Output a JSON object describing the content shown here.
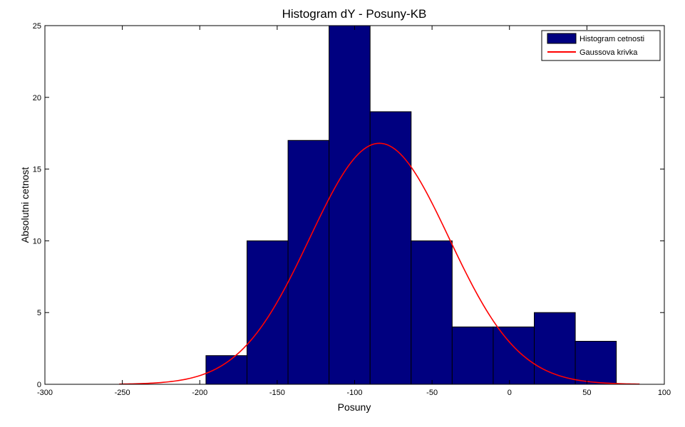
{
  "chart_data": {
    "type": "bar",
    "title": "Histogram dY - Posuny-KB",
    "xlabel": "Posuny",
    "ylabel": "Absolutni cetnost",
    "xlim": [
      -300,
      100
    ],
    "ylim": [
      0,
      25
    ],
    "xticks": [
      -300,
      -250,
      -200,
      -150,
      -100,
      -50,
      0,
      50,
      100
    ],
    "yticks": [
      0,
      5,
      10,
      15,
      20,
      25
    ],
    "grid": false,
    "legend_position": "top-right",
    "colors": {
      "bars": "#000080",
      "curve": "#ff0000",
      "edge": "#000000"
    },
    "series": [
      {
        "name": "Histogram cetnosti",
        "type": "bar",
        "bin_edges": [
          -196,
          -169.5,
          -143,
          -116.5,
          -90,
          -63.5,
          -37,
          -10.5,
          16,
          42.5,
          69
        ],
        "values": [
          2,
          10,
          17,
          25,
          19,
          10,
          4,
          4,
          5,
          3
        ]
      },
      {
        "name": "Gaussova krivka",
        "type": "line",
        "distribution": {
          "mean": -84,
          "std": 45,
          "peak": 16.8
        },
        "x_range": [
          -252,
          84
        ]
      }
    ]
  }
}
